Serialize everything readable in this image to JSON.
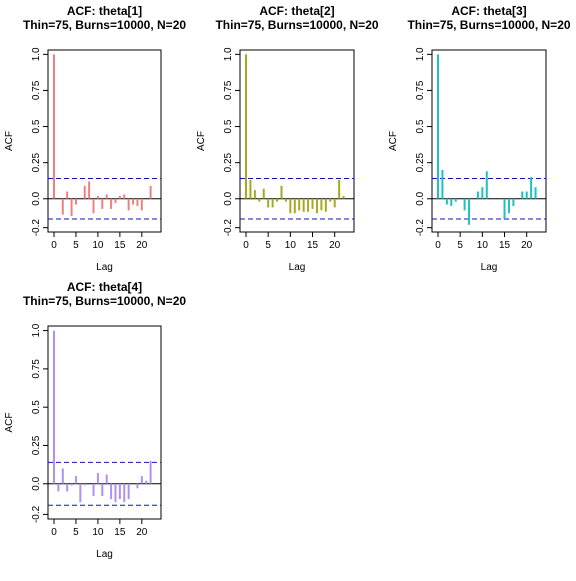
{
  "chart_data": [
    {
      "type": "bar",
      "title": "ACF: theta[1]",
      "subtitle": "Thin=75, Burns=10000, N=20",
      "xlabel": "Lag",
      "ylabel": "ACF",
      "color": "#f08080",
      "xlim": [
        0,
        23
      ],
      "ylim": [
        -0.2,
        1.0
      ],
      "xticks": [
        0,
        5,
        10,
        15,
        20
      ],
      "yticks": [
        -0.2,
        0.0,
        0.25,
        0.5,
        0.75,
        1.0
      ],
      "ytick_labels": [
        "-0.2",
        "0.0",
        "0.25",
        "0.5",
        "0.75",
        "1.0"
      ],
      "confidence_bounds": [
        0.14,
        -0.14
      ],
      "lags": [
        0,
        1,
        2,
        3,
        4,
        5,
        6,
        7,
        8,
        9,
        10,
        11,
        12,
        13,
        14,
        15,
        16,
        17,
        18,
        19,
        20,
        21,
        22
      ],
      "values": [
        1.0,
        0.0,
        -0.11,
        0.05,
        -0.12,
        -0.04,
        0.0,
        0.09,
        0.12,
        -0.1,
        0.02,
        -0.07,
        0.03,
        -0.07,
        -0.03,
        0.02,
        0.03,
        -0.08,
        -0.04,
        -0.05,
        -0.08,
        0.0,
        0.09
      ]
    },
    {
      "type": "bar",
      "title": "ACF: theta[2]",
      "subtitle": "Thin=75, Burns=10000, N=20",
      "xlabel": "Lag",
      "ylabel": "ACF",
      "color": "#a8a820",
      "xlim": [
        0,
        23
      ],
      "ylim": [
        -0.2,
        1.0
      ],
      "xticks": [
        0,
        5,
        10,
        15,
        20
      ],
      "yticks": [
        -0.2,
        0.0,
        0.25,
        0.5,
        0.75,
        1.0
      ],
      "ytick_labels": [
        "-0.2",
        "0.0",
        "0.25",
        "0.5",
        "0.75",
        "1.0"
      ],
      "confidence_bounds": [
        0.14,
        -0.14
      ],
      "lags": [
        0,
        1,
        2,
        3,
        4,
        5,
        6,
        7,
        8,
        9,
        10,
        11,
        12,
        13,
        14,
        15,
        16,
        17,
        18,
        19,
        20,
        21,
        22
      ],
      "values": [
        1.0,
        0.13,
        0.06,
        -0.02,
        0.07,
        -0.06,
        -0.06,
        -0.02,
        0.09,
        -0.02,
        -0.1,
        -0.1,
        -0.08,
        -0.09,
        -0.09,
        -0.07,
        -0.1,
        -0.08,
        -0.09,
        -0.02,
        -0.06,
        0.13,
        0.02
      ]
    },
    {
      "type": "bar",
      "title": "ACF: theta[3]",
      "subtitle": "Thin=75, Burns=10000, N=20",
      "xlabel": "Lag",
      "ylabel": "ACF",
      "color": "#20c0c0",
      "xlim": [
        0,
        23
      ],
      "ylim": [
        -0.2,
        1.0
      ],
      "xticks": [
        0,
        5,
        10,
        15,
        20
      ],
      "yticks": [
        -0.2,
        0.0,
        0.25,
        0.5,
        0.75,
        1.0
      ],
      "ytick_labels": [
        "-0.2",
        "0.0",
        "0.25",
        "0.5",
        "0.75",
        "1.0"
      ],
      "confidence_bounds": [
        0.14,
        -0.14
      ],
      "lags": [
        0,
        1,
        2,
        3,
        4,
        5,
        6,
        7,
        8,
        9,
        10,
        11,
        12,
        13,
        14,
        15,
        16,
        17,
        18,
        19,
        20,
        21,
        22
      ],
      "values": [
        1.0,
        0.2,
        -0.04,
        -0.05,
        -0.02,
        0.0,
        -0.08,
        -0.18,
        0.0,
        0.05,
        0.08,
        0.19,
        0.0,
        0.0,
        0.0,
        -0.14,
        -0.1,
        -0.05,
        0.0,
        0.05,
        0.05,
        0.15,
        0.08
      ]
    },
    {
      "type": "bar",
      "title": "ACF: theta[4]",
      "subtitle": "Thin=75, Burns=10000, N=20",
      "xlabel": "Lag",
      "ylabel": "ACF",
      "color": "#b090f0",
      "xlim": [
        0,
        23
      ],
      "ylim": [
        -0.2,
        1.0
      ],
      "xticks": [
        0,
        5,
        10,
        15,
        20
      ],
      "yticks": [
        -0.2,
        0.0,
        0.25,
        0.5,
        0.75,
        1.0
      ],
      "ytick_labels": [
        "-0.2",
        "0.0",
        "0.25",
        "0.5",
        "0.75",
        "1.0"
      ],
      "confidence_bounds": [
        0.14,
        -0.14
      ],
      "lags": [
        0,
        1,
        2,
        3,
        4,
        5,
        6,
        7,
        8,
        9,
        10,
        11,
        12,
        13,
        14,
        15,
        16,
        17,
        18,
        19,
        20,
        21,
        22
      ],
      "values": [
        1.0,
        -0.05,
        0.1,
        -0.05,
        -0.01,
        0.05,
        -0.12,
        -0.01,
        0.0,
        -0.08,
        0.07,
        -0.08,
        0.06,
        -0.1,
        -0.12,
        -0.1,
        -0.12,
        -0.1,
        0.0,
        -0.03,
        0.05,
        0.02,
        0.15
      ]
    }
  ]
}
